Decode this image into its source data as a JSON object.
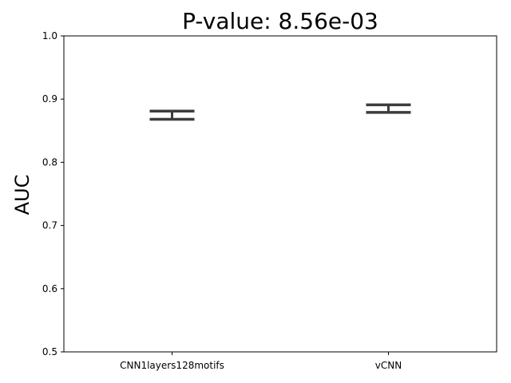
{
  "chart_data": {
    "type": "errorbar",
    "title": "P-value: 8.56e-03",
    "xlabel": "",
    "ylabel": "AUC",
    "ylim": [
      0.5,
      1.0
    ],
    "yticks": [
      0.5,
      0.6,
      0.7,
      0.8,
      0.9,
      1.0
    ],
    "ytick_labels": [
      "0.5",
      "0.6",
      "0.7",
      "0.8",
      "0.9",
      "1.0"
    ],
    "categories": [
      "CNN1layers128motifs",
      "vCNN"
    ],
    "series": [
      {
        "name": "AUC range",
        "low": [
          0.868,
          0.879
        ],
        "high": [
          0.881,
          0.891
        ]
      }
    ],
    "grid": false,
    "line_color": "#3d3d3d"
  }
}
